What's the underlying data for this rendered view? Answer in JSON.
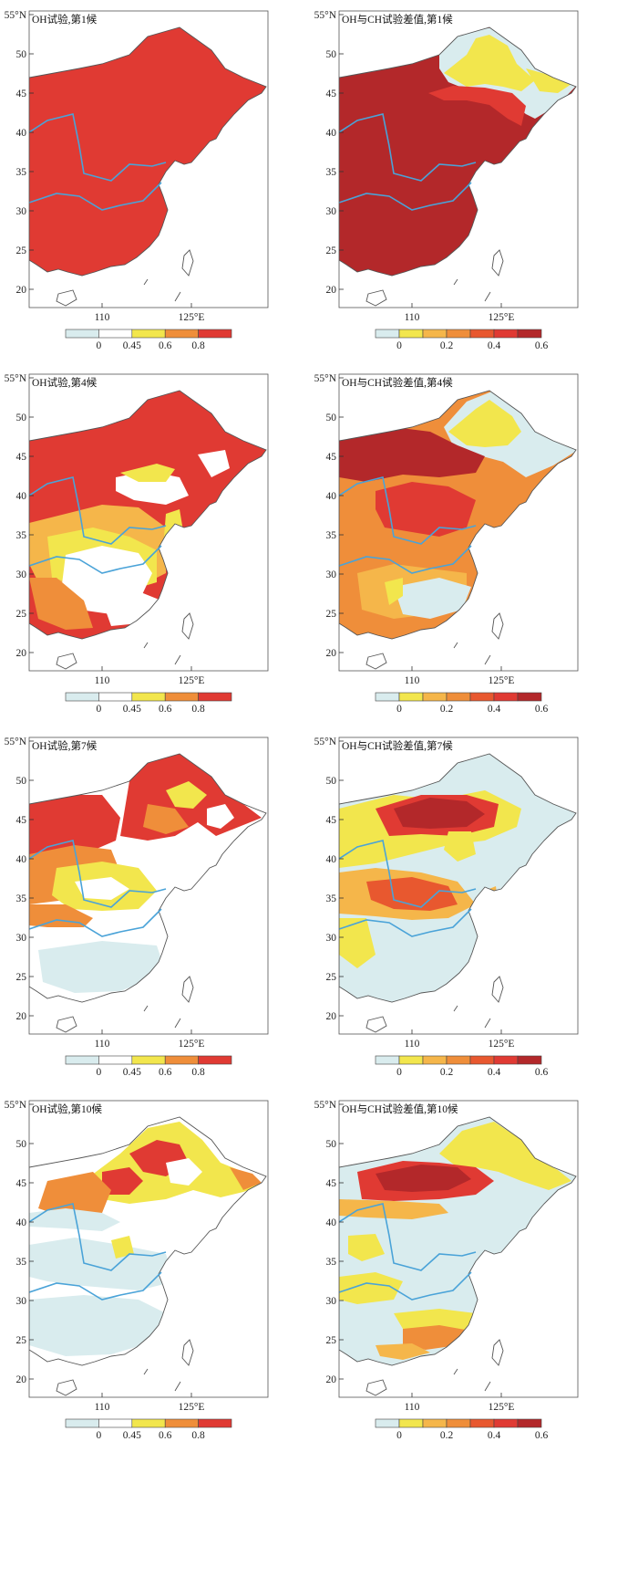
{
  "colors": {
    "light_blue": "#d9ecee",
    "white": "#ffffff",
    "yellow": "#f2e64d",
    "light_orange": "#f5b64a",
    "orange": "#ef8e3a",
    "red_orange": "#e8582f",
    "red": "#e03a33",
    "dark_red": "#b3282a",
    "river": "#4aa3d8",
    "coast": "#555555"
  },
  "panels": [
    {
      "title": "OH试验,第1候",
      "kind": "oh",
      "stage": 1
    },
    {
      "title": "OH与CH试验差值,第1候",
      "kind": "diff",
      "stage": 1
    },
    {
      "title": "OH试验,第4候",
      "kind": "oh",
      "stage": 4
    },
    {
      "title": "OH与CH试验差值,第4候",
      "kind": "diff",
      "stage": 4
    },
    {
      "title": "OH试验,第7候",
      "kind": "oh",
      "stage": 7
    },
    {
      "title": "OH与CH试验差值,第7候",
      "kind": "diff",
      "stage": 7
    },
    {
      "title": "OH试验,第10候",
      "kind": "oh",
      "stage": 10
    },
    {
      "title": "OH与CH试验差值,第10候",
      "kind": "diff",
      "stage": 10
    }
  ],
  "axes": {
    "lat_ticks": [
      "55°N",
      "50",
      "45",
      "40",
      "35",
      "30",
      "25",
      "20"
    ],
    "lon_ticks": [
      "110",
      "125°E"
    ]
  },
  "legends": {
    "oh": {
      "labels": [
        "0",
        "0.45",
        "0.6",
        "0.8"
      ],
      "fills": [
        "light_blue",
        "white",
        "yellow",
        "orange",
        "red"
      ]
    },
    "diff": {
      "labels": [
        "0",
        "0.2",
        "0.4",
        "0.6"
      ],
      "fills": [
        "light_blue",
        "yellow",
        "light_orange",
        "orange",
        "red_orange",
        "red",
        "dark_red"
      ]
    }
  }
}
